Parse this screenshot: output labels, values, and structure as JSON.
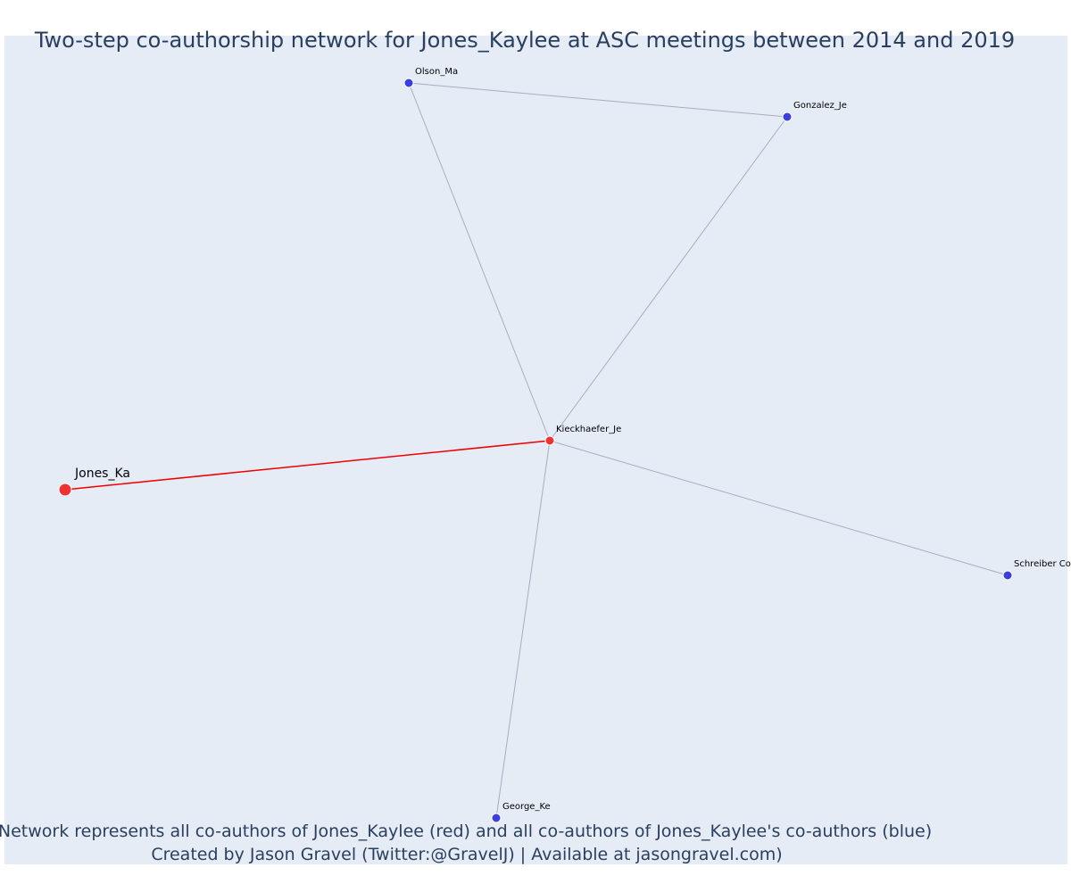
{
  "title": "Two-step co-authorship network for Jones_Kaylee at ASC meetings between 2014 and 2019",
  "caption": {
    "line1": "Network represents all co-authors of Jones_Kaylee (red) and all co-authors of Jones_Kaylee's co-authors (blue)",
    "line2": "Created by Jason Gravel (Twitter:@GravelJ) | Available at jasongravel.com)"
  },
  "colors": {
    "plot_background": "#e5ecf6",
    "title_text": "#2a3f5f",
    "red_node": "#ee3333",
    "blue_node": "#3b3fe0",
    "edge_gray": "#a9acc0",
    "edge_red": "#ee0000"
  },
  "network": {
    "nodes": [
      {
        "id": "Jones_Ka",
        "label": "Jones_Ka",
        "group": "red",
        "ego": true
      },
      {
        "id": "Kieckhaefer_Je",
        "label": "Kieckhaefer_Je",
        "group": "red",
        "ego": false
      },
      {
        "id": "Olson_Ma",
        "label": "Olson_Ma",
        "group": "blue",
        "ego": false
      },
      {
        "id": "Gonzalez_Je",
        "label": "Gonzalez_Je",
        "group": "blue",
        "ego": false
      },
      {
        "id": "Schreiber_Co",
        "label": "Schreiber Co",
        "group": "blue",
        "ego": false
      },
      {
        "id": "George_Ke",
        "label": "George_Ke",
        "group": "blue",
        "ego": false
      }
    ],
    "edges": [
      {
        "source": "Jones_Ka",
        "target": "Kieckhaefer_Je",
        "color": "red"
      },
      {
        "source": "Kieckhaefer_Je",
        "target": "Olson_Ma",
        "color": "gray"
      },
      {
        "source": "Kieckhaefer_Je",
        "target": "Gonzalez_Je",
        "color": "gray"
      },
      {
        "source": "Olson_Ma",
        "target": "Gonzalez_Je",
        "color": "gray"
      },
      {
        "source": "Kieckhaefer_Je",
        "target": "Schreiber_Co",
        "color": "gray"
      },
      {
        "source": "Kieckhaefer_Je",
        "target": "George_Ke",
        "color": "gray"
      }
    ]
  }
}
